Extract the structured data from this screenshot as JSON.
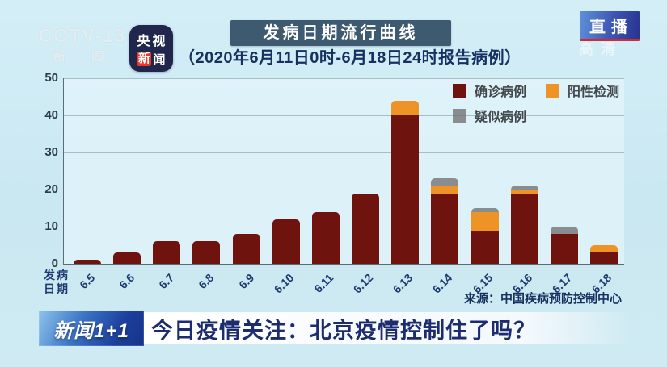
{
  "header": {
    "channel_watermark": "CCTV-13",
    "channel_watermark_sub": "新 闻",
    "app_badge": {
      "line1": "央视",
      "line2_char1": "新",
      "line2_char2": "闻"
    },
    "title": "发病日期流行曲线",
    "subtitle": "（2020年6月11日0时-6月18日24时报告病例）",
    "live_badge": "直播",
    "hd_watermark": "高清"
  },
  "chart_data": {
    "type": "bar",
    "stacked": true,
    "title": "发病日期流行曲线",
    "xlabel": "发病日期",
    "ylabel": "",
    "ylim": [
      0,
      50
    ],
    "yticks": [
      0,
      10,
      20,
      30,
      40,
      50
    ],
    "grid": true,
    "legend_position": "top-right",
    "categories": [
      "6.5",
      "6.6",
      "6.7",
      "6.8",
      "6.9",
      "6.10",
      "6.11",
      "6.12",
      "6.13",
      "6.14",
      "6.15",
      "6.16",
      "6.17",
      "6.18"
    ],
    "series": [
      {
        "name": "确诊病例",
        "color": "#6e130e",
        "values": [
          1,
          3,
          6,
          6,
          8,
          12,
          14,
          19,
          40,
          19,
          9,
          19,
          8,
          3
        ]
      },
      {
        "name": "阳性检测",
        "color": "#ee9426",
        "values": [
          0,
          0,
          0,
          0,
          0,
          0,
          0,
          0,
          4,
          2,
          5,
          1,
          0,
          2
        ]
      },
      {
        "name": "疑似病例",
        "color": "#8a8d8f",
        "values": [
          0,
          0,
          0,
          0,
          0,
          0,
          0,
          0,
          0,
          2,
          1,
          1,
          2,
          0
        ]
      }
    ],
    "x_axis_title_line1": "发病",
    "x_axis_title_line2": "日期",
    "source_note": "来源：中国疾病预防控制中心"
  },
  "footer": {
    "program_logo": "新闻1+1",
    "headline": "今日疫情关注：北京疫情控制住了吗？"
  },
  "colors": {
    "background": "#cde9f3",
    "title_banner": "#3d5a70",
    "confirmed": "#6e130e",
    "positive": "#ee9426",
    "suspected": "#8a8d8f",
    "navy_text": "#16315f",
    "headline_text": "#1d2c6e"
  }
}
